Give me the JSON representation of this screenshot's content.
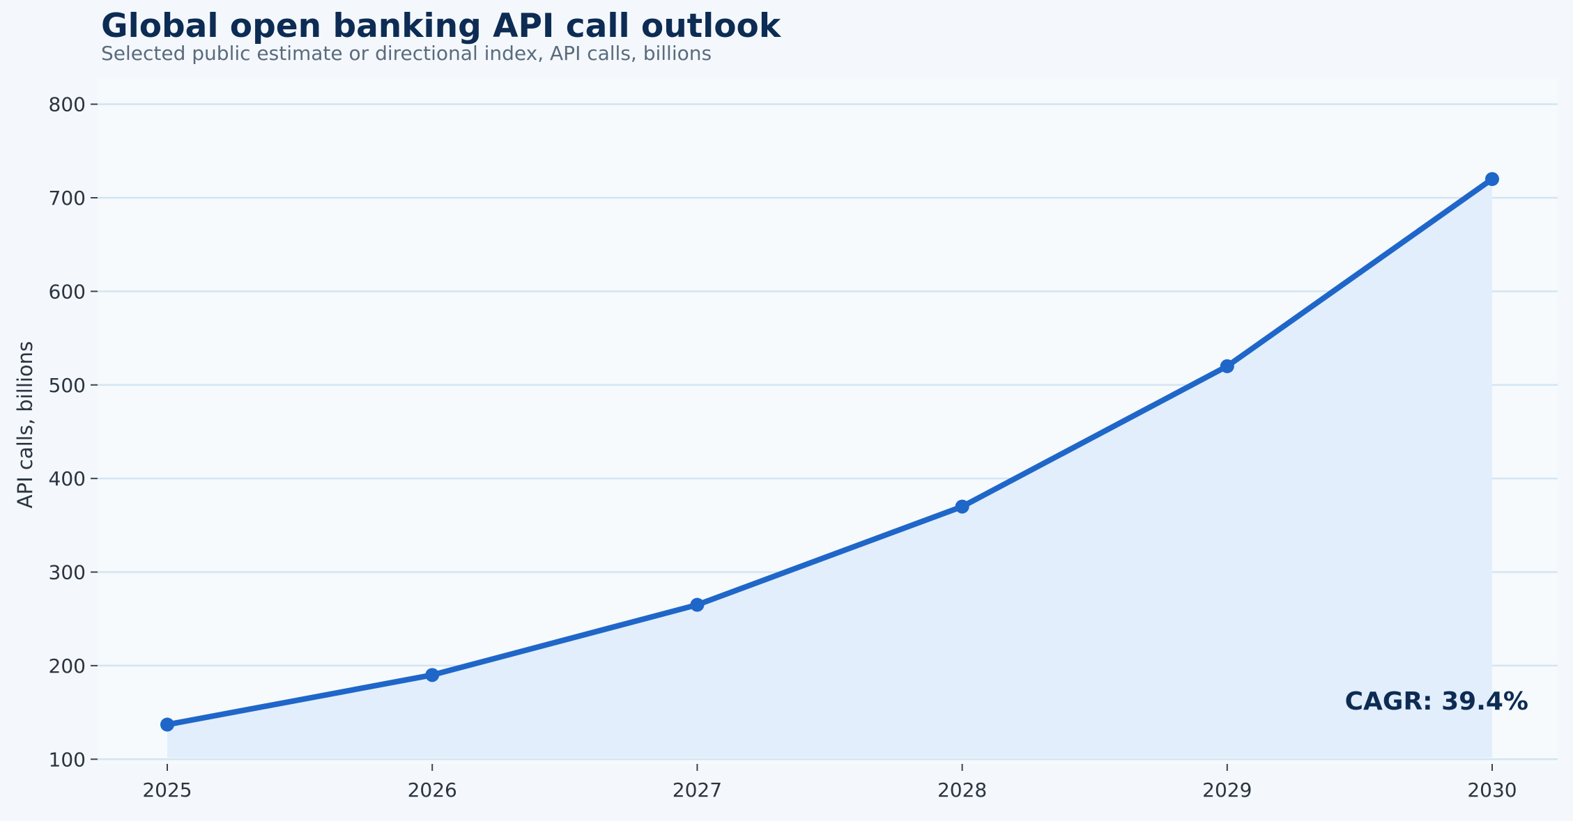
{
  "chart_data": {
    "type": "line",
    "title": "Global open banking API call outlook",
    "subtitle": "Selected public estimate or directional index, API calls, billions",
    "xlabel": "",
    "ylabel": "API calls, billions",
    "x": [
      "2025",
      "2026",
      "2027",
      "2028",
      "2029",
      "2030"
    ],
    "series": [
      {
        "values": [
          137,
          190,
          265,
          370,
          520,
          720
        ]
      }
    ],
    "ylim": [
      95,
      828
    ],
    "yticks": [
      100,
      200,
      300,
      400,
      500,
      600,
      700,
      800
    ],
    "grid": true,
    "area_fill": true,
    "annotation": "CAGR: 39.4%",
    "colors": {
      "line": "#1f66c9",
      "marker": "#1f66c9",
      "area": "#e2eefb",
      "grid": "#d3e5f2",
      "plot_background": "#f6fafd",
      "page_background": "#f4f8fc",
      "title": "#0d2c54"
    }
  }
}
